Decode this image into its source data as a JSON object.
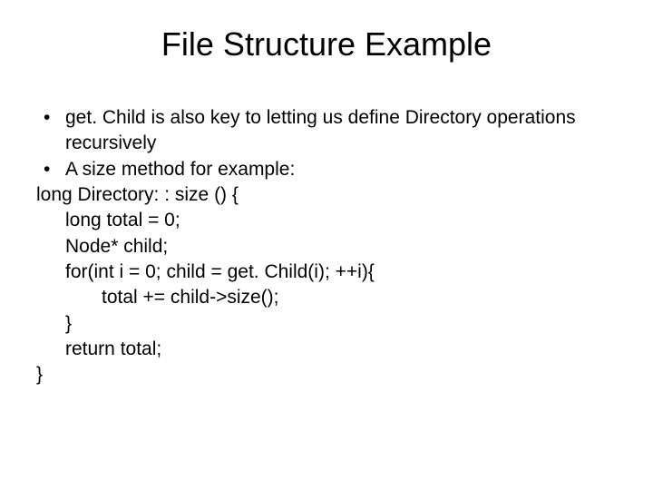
{
  "colors": {
    "background": "#ffffff",
    "text": "#000000"
  },
  "typography": {
    "family": "Arial",
    "title_fontsize": 36,
    "body_fontsize": 21
  },
  "title": "File Structure Example",
  "bullets": [
    "get. Child is also key to letting us define Directory operations recursively",
    "A size method for example:"
  ],
  "code": {
    "l0": "long Directory: : size () {",
    "l1": "long total = 0;",
    "l2": "Node* child;",
    "l3": "for(int i = 0; child = get. Child(i); ++i){",
    "l4": "total += child->size();",
    "l5": "}",
    "l6": "return total;",
    "l7": "}"
  }
}
